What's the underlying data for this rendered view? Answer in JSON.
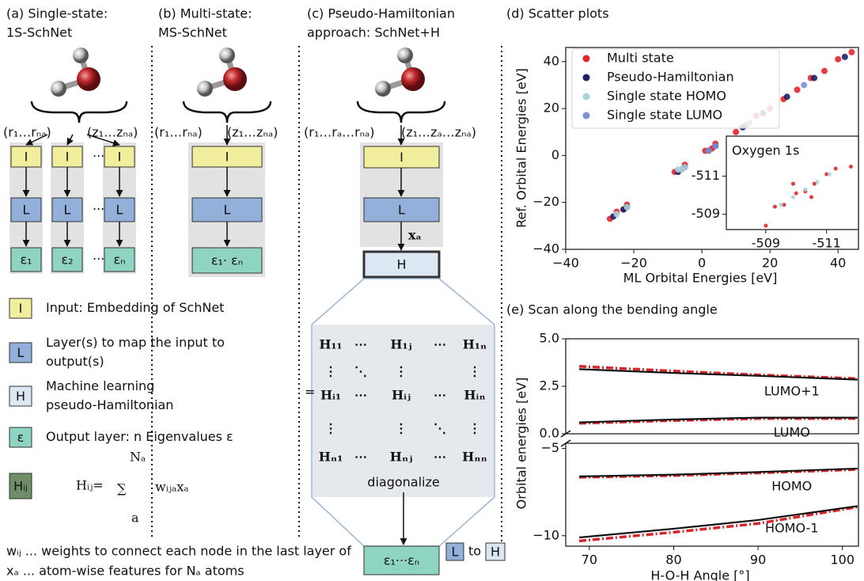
{
  "diagram": {
    "panel_a": {
      "title": [
        "(a) Single-state:",
        "1S-SchNet"
      ],
      "inputs": [
        "(r₁…rₙₐ)",
        "(z₁…zₙₐ)"
      ],
      "input_box": "I",
      "layer_box": "L",
      "outputs": [
        "ε₁",
        "ε₂",
        "εₙ"
      ],
      "dots": "···"
    },
    "panel_b": {
      "title": [
        "(b) Multi-state:",
        "MS-SchNet"
      ],
      "inputs": [
        "(r₁…rₙₐ)",
        "(z₁…zₙₐ)"
      ],
      "input_box": "I",
      "layer_box": "L",
      "output": "ε₁· εₙ"
    },
    "panel_c": {
      "title": [
        "(c) Pseudo-Hamiltonian",
        "approach: SchNet+H"
      ],
      "inputs": [
        "(r₁…rₐ…rₙₐ)",
        "(z₁…zₐ…zₙₐ)"
      ],
      "input_box": "I",
      "layer_box": "L",
      "features": "xₐ",
      "hamiltonian_box": "H",
      "element_box": "Hᵢⱼ",
      "equals": "=",
      "matrix": [
        [
          "H₁₁",
          "⋯",
          "H₁ⱼ",
          "⋯",
          "H₁ₙ"
        ],
        [
          "⋮",
          "⋱",
          "⋮",
          "⋮"
        ],
        [
          "Hᵢ₁",
          "⋯",
          "Hᵢⱼ",
          "⋯",
          "Hᵢₙ"
        ],
        [
          "⋮",
          "⋮",
          "⋱",
          "⋮"
        ],
        [
          "Hₙ₁",
          "⋯",
          "Hₙⱼ",
          "⋯",
          "Hₙₙ"
        ]
      ],
      "diagonalize": "diagonalize",
      "output": "ε₁···εₙ"
    },
    "legend": [
      {
        "key": "I",
        "text": [
          "Input: Embedding of SchNet"
        ]
      },
      {
        "key": "L",
        "text": [
          "Layer(s) to map the input to",
          "output(s)"
        ]
      },
      {
        "key": "H",
        "text": [
          "Machine learning",
          "pseudo-Hamiltonian"
        ]
      },
      {
        "key": "ε",
        "text": [
          "Output layer: n Eigenvalues ε"
        ]
      },
      {
        "key": "Hᵢⱼ",
        "formula": {
          "lhs": "Hᵢⱼ=",
          "sum": "∑",
          "top": "Nₐ",
          "bottom": "a",
          "rhs": "wᵢⱼₐxₐ"
        }
      }
    ],
    "footnotes": [
      {
        "text": "wᵢⱼ ... weights to connect each node in the last layer of",
        "box1": "L",
        "middle": "to",
        "box2": "H"
      },
      {
        "text": "xₐ ... atom-wise features for Nₐ atoms"
      }
    ]
  },
  "chart_data": [
    {
      "type": "scatter",
      "title": "(d) Scatter plots",
      "xlabel": "ML Orbital Energies [eV]",
      "ylabel": "Ref. Orbital Energies [eV]",
      "xlim": [
        -40,
        46
      ],
      "ylim": [
        -40,
        46
      ],
      "xticks": [
        {
          "value": -40,
          "label": "−40"
        },
        {
          "value": -20,
          "label": "−20"
        },
        0,
        20,
        40
      ],
      "yticks": [
        {
          "value": -40,
          "label": "−40"
        },
        {
          "value": -20,
          "label": "−20"
        },
        0,
        20,
        40
      ],
      "legend": "upper left",
      "series": [
        {
          "name": "Multi state",
          "color": "#e3262a",
          "x": [
            -27,
            -25,
            -23,
            -22,
            -8,
            -6,
            -5,
            1,
            3,
            4,
            10,
            13,
            16,
            20,
            24,
            28,
            32,
            36,
            40,
            44
          ],
          "values": [
            -27,
            -24,
            -23,
            -21,
            -7,
            -6,
            -4,
            2,
            3,
            5,
            10,
            13,
            17,
            20,
            24,
            28,
            33,
            36,
            41,
            44
          ]
        },
        {
          "name": "Pseudo-Hamiltonian",
          "color": "#1f2066",
          "x": [
            -26,
            -23,
            -22,
            -7,
            -5,
            2,
            4,
            12,
            18,
            25,
            33,
            42
          ],
          "values": [
            -26,
            -23,
            -22,
            -7,
            -5,
            2,
            4,
            12,
            18,
            25,
            33,
            42
          ]
        },
        {
          "name": "Single state HOMO",
          "color": "#a8d2dc",
          "x": [
            -25,
            -22,
            -7,
            -6,
            -5
          ],
          "values": [
            -25,
            -22,
            -6,
            -6,
            -5
          ]
        },
        {
          "name": "Single state LUMO",
          "color": "#8390d6",
          "x": [
            2,
            4,
            14,
            30
          ],
          "values": [
            2,
            4,
            14,
            30
          ]
        }
      ]
    },
    {
      "type": "scatter",
      "title": "Oxygen 1s",
      "xlim": [
        -507.7,
        -512.05
      ],
      "ylim": [
        -508.2,
        -513.1
      ],
      "xticks": [
        -509,
        -511
      ],
      "yticks": [
        -509,
        -511
      ],
      "series": [
        {
          "color": "#e3262a",
          "x": [
            -509.3,
            -509.6,
            -510,
            -510.3,
            -510.6,
            -511,
            -511.3,
            -511.8,
            -509,
            -509.9,
            -510.5
          ],
          "values": [
            -509.4,
            -509.5,
            -510.1,
            -510.2,
            -510.6,
            -511.1,
            -511.4,
            -511.5,
            -508.4,
            -510.6,
            -509.9
          ]
        },
        {
          "color": "#a8d2dc",
          "x": [
            -509.5,
            -509.9,
            -510.3,
            -510.7,
            -511.1
          ],
          "values": [
            -509.5,
            -509.9,
            -510.3,
            -510.7,
            -511.1
          ]
        }
      ]
    },
    {
      "type": "line",
      "title": "(e) Scan along the bending angle",
      "ylabel": "Orbital energies [eV]",
      "xlim": [
        67.2,
        101.9
      ],
      "ylim": [
        0,
        5
      ],
      "yticks": [
        {
          "value": 0,
          "label": "0.0"
        },
        {
          "value": 2.5,
          "label": "2.5"
        },
        {
          "value": 5,
          "label": "5.0"
        }
      ],
      "x": [
        68.8,
        80,
        90,
        101.8
      ],
      "series": [
        {
          "color": "#d62728",
          "linestyle": "dashdot",
          "values": [
            3.55,
            3.3,
            3.1,
            2.9
          ]
        },
        {
          "color": "#111111",
          "linestyle": "solid",
          "values": [
            3.4,
            3.2,
            3.05,
            2.85
          ]
        },
        {
          "color": "#d62728",
          "linestyle": "dashdot",
          "values": [
            0.55,
            0.7,
            0.8,
            0.8
          ]
        },
        {
          "color": "#111111",
          "linestyle": "solid",
          "values": [
            0.6,
            0.75,
            0.85,
            0.85
          ]
        }
      ],
      "annotations": [
        {
          "text": "LUMO+1",
          "x": 94,
          "y": 2.2
        },
        {
          "text": "LUMO",
          "x": 94,
          "y": 0.05
        }
      ]
    },
    {
      "type": "line",
      "xlabel": "H-O-H Angle [°]",
      "xlim": [
        67.2,
        101.9
      ],
      "ylim": [
        -10.6,
        -4.7
      ],
      "xticks": [
        70,
        80,
        90,
        100
      ],
      "yticks": [
        {
          "value": -5,
          "label": "−5"
        },
        {
          "value": -10,
          "label": "−10"
        }
      ],
      "x": [
        68.8,
        80,
        90,
        101.8
      ],
      "series": [
        {
          "color": "#d62728",
          "linestyle": "dashdot",
          "values": [
            -6.65,
            -6.55,
            -6.4,
            -6.2
          ]
        },
        {
          "color": "#111111",
          "linestyle": "solid",
          "values": [
            -6.6,
            -6.5,
            -6.35,
            -6.15
          ]
        },
        {
          "color": "#d62728",
          "linestyle": "dashdot",
          "values": [
            -10.3,
            -9.8,
            -9.3,
            -8.35
          ]
        },
        {
          "color": "#111111",
          "linestyle": "solid",
          "values": [
            -10.1,
            -9.6,
            -9.1,
            -8.3
          ]
        }
      ],
      "annotations": [
        {
          "text": "HOMO",
          "x": 94,
          "y": -7.2
        },
        {
          "text": "HOMO-1",
          "x": 94,
          "y": -9.6
        }
      ]
    }
  ]
}
